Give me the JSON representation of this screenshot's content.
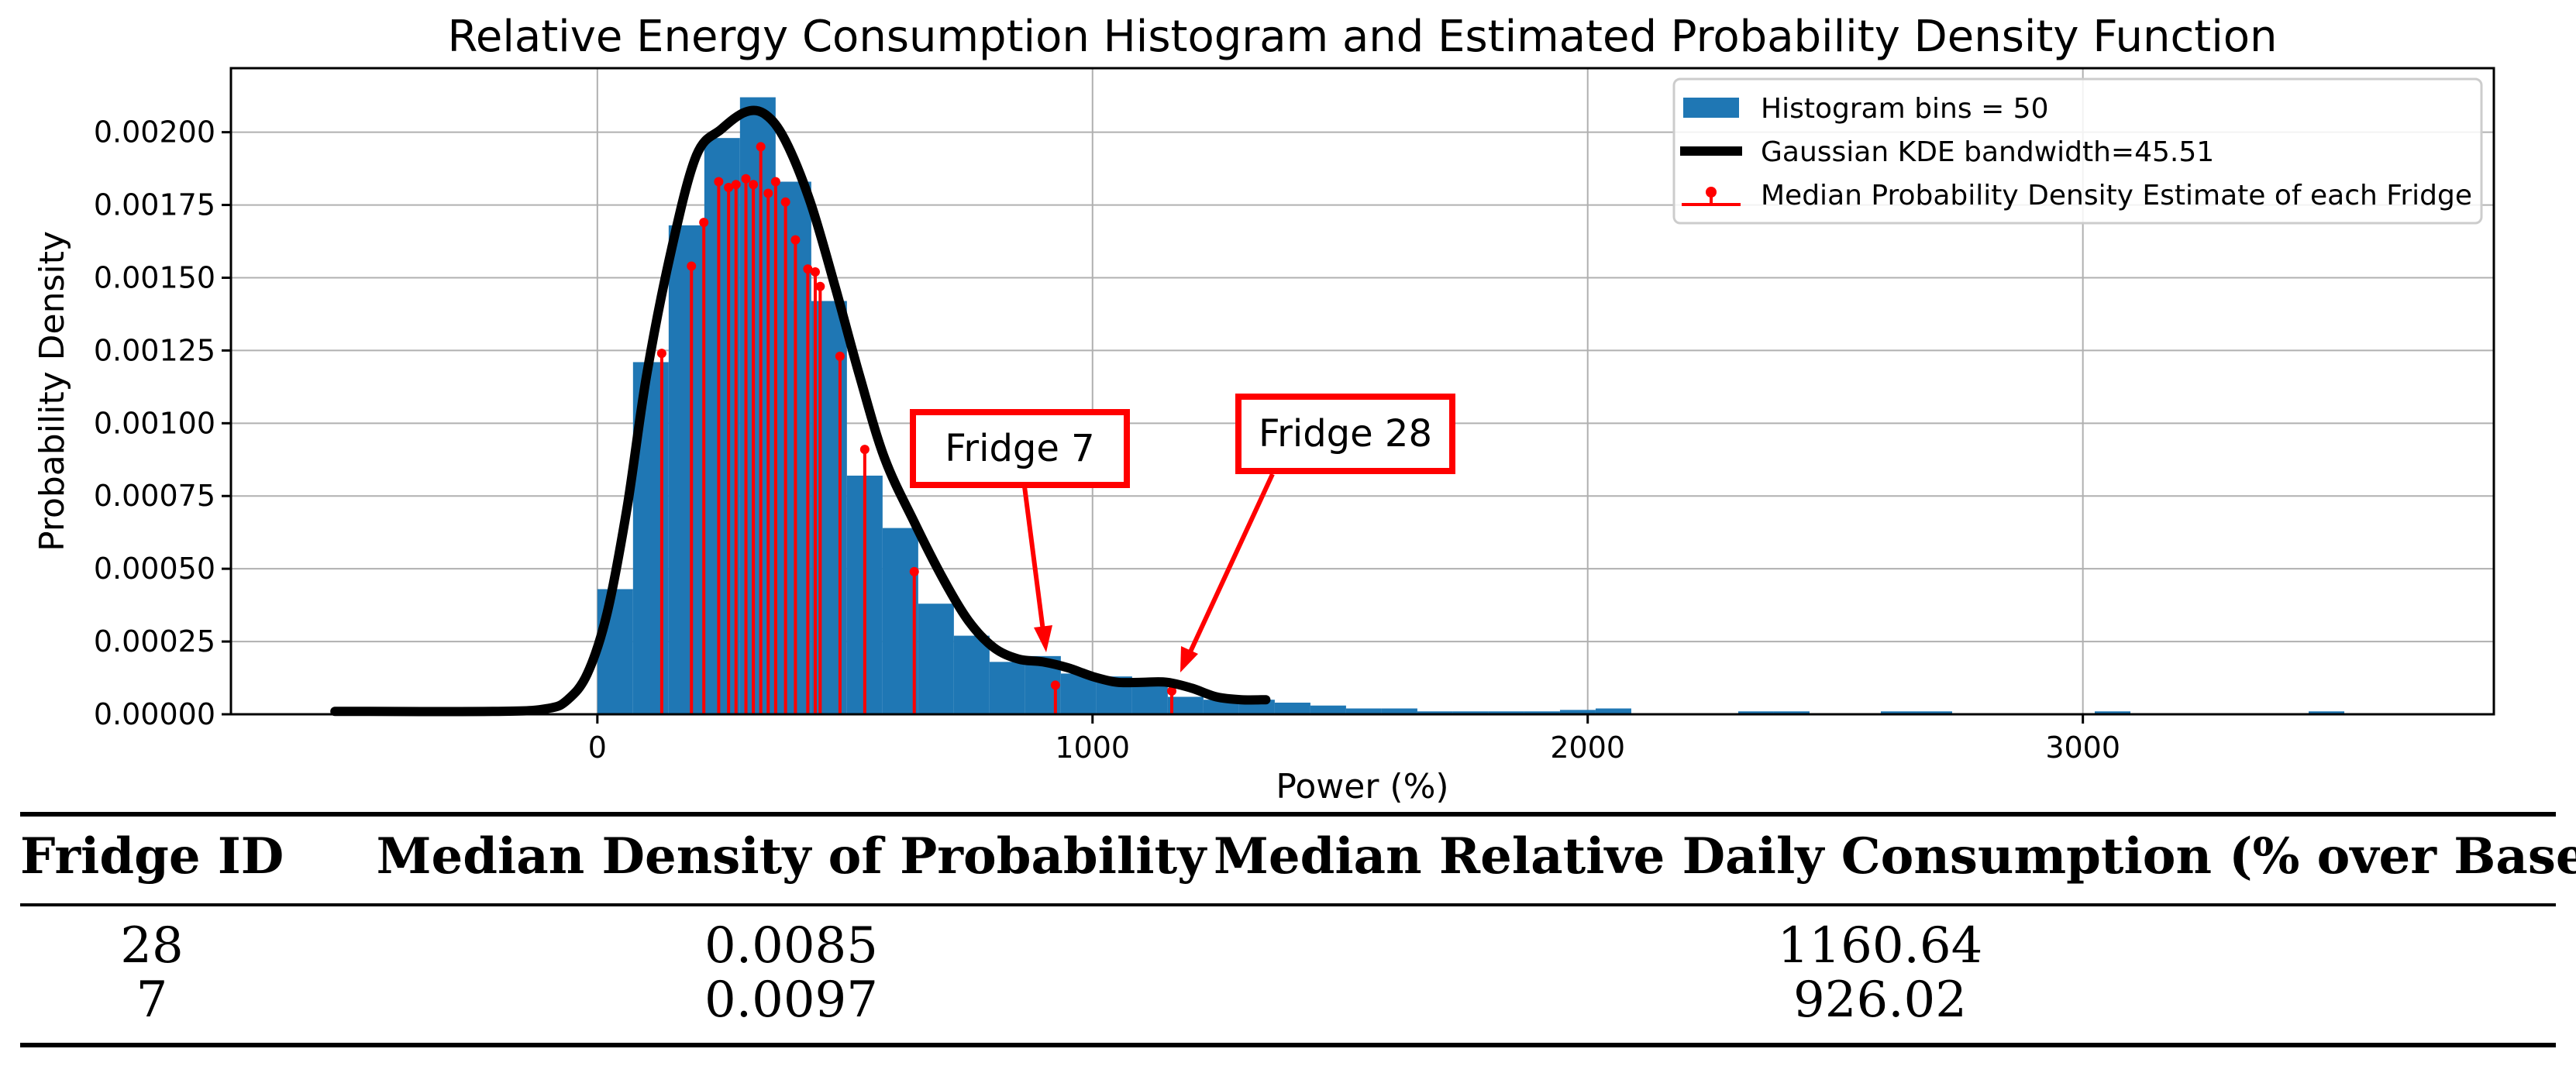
{
  "chart_data": {
    "type": "bar",
    "title": "Relative Energy Consumption Histogram and Estimated Probability Density Function",
    "xlabel": "Power (%)",
    "ylabel": "Probability Density",
    "xlim": [
      -740,
      3830
    ],
    "ylim": [
      0,
      0.00222
    ],
    "xticks": [
      0,
      1000,
      2000,
      3000
    ],
    "xtick_labels": [
      "0",
      "1000",
      "2000",
      "3000"
    ],
    "yticks": [
      0,
      0.00025,
      0.0005,
      0.00075,
      0.001,
      0.00125,
      0.0015,
      0.00175,
      0.002
    ],
    "ytick_labels": [
      "0.00000",
      "0.00025",
      "0.00050",
      "0.00075",
      "0.00100",
      "0.00125",
      "0.00150",
      "0.00175",
      "0.00200"
    ],
    "grid": true,
    "legend_position": "top-right",
    "legend": [
      "Histogram bins = 50",
      "Gaussian KDE bandwidth=45.51",
      "Median Probability Density Estimate of each Fridge"
    ],
    "series": [
      {
        "name": "Histogram bins = 50",
        "kind": "histogram",
        "color": "#1f77b4",
        "bin_edges": [
          0,
          72,
          144,
          216,
          288,
          360,
          432,
          504,
          576,
          648,
          720,
          792,
          864,
          936,
          1008,
          1080,
          1152,
          1224,
          1296,
          1368,
          1440,
          1512,
          1584,
          1656,
          1728,
          1800,
          1872,
          1944,
          2016,
          2088,
          2160,
          2232,
          2304,
          2376,
          2448,
          2520,
          2592,
          2664,
          2736,
          2808,
          2880,
          2952,
          3024,
          3096,
          3168,
          3240,
          3312,
          3384,
          3456,
          3528,
          3600
        ],
        "values": [
          0.00043,
          0.00121,
          0.00168,
          0.00198,
          0.00212,
          0.00183,
          0.00142,
          0.00082,
          0.00064,
          0.00038,
          0.00027,
          0.00018,
          0.0002,
          0.00014,
          0.00013,
          0.00012,
          6e-05,
          5e-05,
          5e-05,
          4e-05,
          3e-05,
          2e-05,
          2e-05,
          1e-05,
          1e-05,
          1e-05,
          1e-05,
          1.5e-05,
          2e-05,
          0.0,
          0.0,
          0.0,
          1e-05,
          1e-05,
          0.0,
          0.0,
          1e-05,
          1e-05,
          0.0,
          0.0,
          0.0,
          0.0,
          1e-05,
          0.0,
          0.0,
          0.0,
          0.0,
          0.0,
          1e-05,
          0.0
        ]
      },
      {
        "name": "Gaussian KDE bandwidth=45.51",
        "kind": "line",
        "color": "#000000",
        "x": [
          -530,
          -200,
          -100,
          -60,
          -20,
          20,
          60,
          100,
          150,
          200,
          250,
          300,
          340,
          380,
          430,
          480,
          530,
          580,
          640,
          700,
          750,
          800,
          850,
          900,
          950,
          1000,
          1050,
          1100,
          1150,
          1200,
          1250,
          1300,
          1350
        ],
        "y": [
          1e-05,
          1e-05,
          2e-05,
          5e-05,
          0.00014,
          0.00035,
          0.00071,
          0.00117,
          0.0016,
          0.00192,
          0.00201,
          0.00207,
          0.00206,
          0.00197,
          0.00176,
          0.00147,
          0.00116,
          0.00088,
          0.00066,
          0.00046,
          0.00032,
          0.00023,
          0.00019,
          0.00018,
          0.00016,
          0.00013,
          0.00011,
          0.00011,
          0.00011,
          9e-05,
          6e-05,
          5e-05,
          5e-05
        ]
      },
      {
        "name": "Median Probability Density Estimate of each Fridge",
        "kind": "stem",
        "color": "#ff0000",
        "x": [
          130,
          190,
          215,
          245,
          265,
          280,
          300,
          315,
          330,
          345,
          360,
          380,
          400,
          425,
          440,
          450,
          490,
          540,
          640,
          925,
          1160
        ],
        "y": [
          0.00124,
          0.00154,
          0.00169,
          0.00183,
          0.00181,
          0.00182,
          0.00184,
          0.00182,
          0.00195,
          0.00179,
          0.00183,
          0.00176,
          0.00163,
          0.00153,
          0.00152,
          0.00147,
          0.00123,
          0.00091,
          0.00049,
          0.0001,
          8e-05
        ]
      }
    ],
    "annotations": [
      {
        "text": "Fridge 7",
        "target_x": 926.02
      },
      {
        "text": "Fridge 28",
        "target_x": 1160.64
      }
    ]
  },
  "table": {
    "headers": [
      "Fridge ID",
      "Median Density of Probability",
      "Median Relative Daily Consumption (% over Base)"
    ],
    "rows": [
      [
        "28",
        "0.0085",
        "1160.64"
      ],
      [
        "7",
        "0.0097",
        "926.02"
      ]
    ]
  }
}
